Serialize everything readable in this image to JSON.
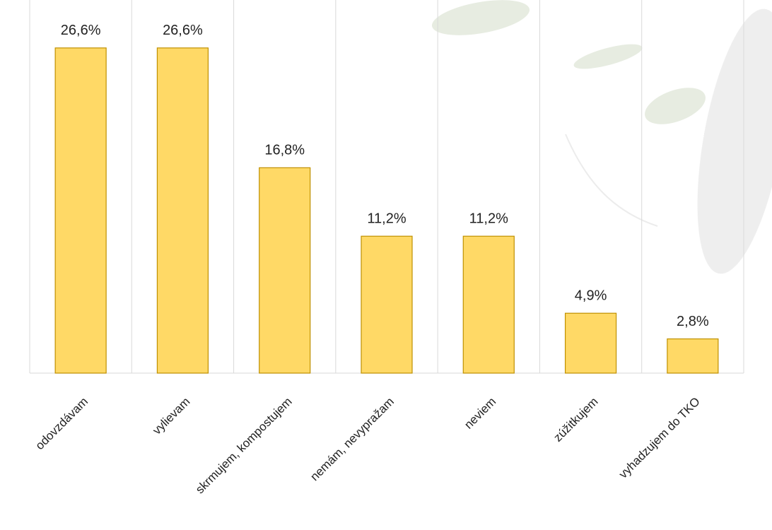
{
  "chart_data": {
    "type": "bar",
    "categories": [
      "odovzdávam",
      "vylievam",
      "skrmujem, kompostujem",
      "nemám, nevypražam",
      "neviem",
      "zúžitkujem",
      "vyhadzujem do TKO"
    ],
    "values": [
      26.6,
      26.6,
      16.8,
      11.2,
      11.2,
      4.9,
      2.8
    ],
    "value_labels": [
      "26,6%",
      "26,6%",
      "16,8%",
      "11,2%",
      "11,2%",
      "4,9%",
      "2,8%"
    ],
    "color": "#ffd966",
    "grid": true
  }
}
